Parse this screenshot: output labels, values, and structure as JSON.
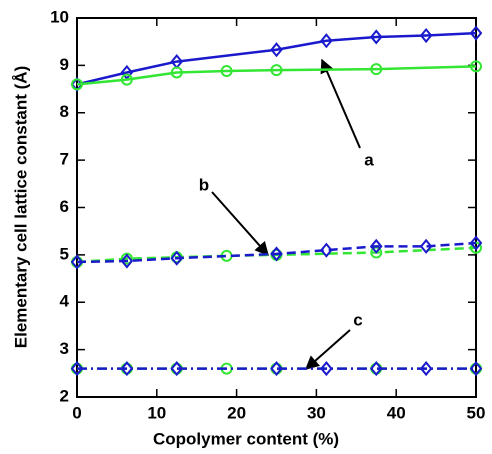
{
  "chart_data": {
    "type": "line",
    "xlabel": "Copolymer content (%)",
    "ylabel": "Elementary cell lattice constant (Å)",
    "xlim": [
      0,
      50
    ],
    "xticks": [
      0,
      10,
      20,
      30,
      40,
      50
    ],
    "ylim": [
      2,
      10
    ],
    "yticks": [
      2,
      3,
      4,
      5,
      6,
      7,
      8,
      9,
      10
    ],
    "annotations": [
      "a",
      "b",
      "c"
    ],
    "series": [
      {
        "color": "#1a1acc",
        "linestyle": "solid",
        "marker": "diamond",
        "x": [
          0,
          6.25,
          12.5,
          25,
          31.25,
          37.5,
          43.75,
          50
        ],
        "values": [
          8.6,
          8.85,
          9.08,
          9.33,
          9.52,
          9.6,
          9.63,
          9.68
        ]
      },
      {
        "color": "#33e633",
        "linestyle": "solid",
        "marker": "circle",
        "x": [
          0,
          6.25,
          12.5,
          18.75,
          25,
          37.5,
          50
        ],
        "values": [
          8.6,
          8.7,
          8.85,
          8.88,
          8.9,
          8.92,
          8.98
        ]
      },
      {
        "color": "#33e633",
        "linestyle": "dashed",
        "marker": "circle",
        "x": [
          0,
          6.25,
          12.5,
          18.75,
          25,
          37.5,
          50
        ],
        "values": [
          4.85,
          4.92,
          4.95,
          4.98,
          5.0,
          5.05,
          5.15
        ]
      },
      {
        "color": "#1a1acc",
        "linestyle": "dashed",
        "marker": "diamond",
        "x": [
          0,
          6.25,
          12.5,
          25,
          31.25,
          37.5,
          43.75,
          50
        ],
        "values": [
          4.85,
          4.87,
          4.93,
          5.02,
          5.1,
          5.18,
          5.18,
          5.25
        ]
      },
      {
        "color": "#33e633",
        "linestyle": "dashdot",
        "marker": "circle",
        "x": [
          0,
          6.25,
          12.5,
          18.75,
          25,
          37.5,
          50
        ],
        "values": [
          2.6,
          2.6,
          2.6,
          2.6,
          2.6,
          2.6,
          2.6
        ]
      },
      {
        "color": "#1a1acc",
        "linestyle": "dashdot",
        "marker": "diamond",
        "x": [
          0,
          6.25,
          12.5,
          25,
          31.25,
          37.5,
          43.75,
          50
        ],
        "values": [
          2.6,
          2.6,
          2.6,
          2.6,
          2.6,
          2.6,
          2.6,
          2.6
        ]
      }
    ]
  }
}
